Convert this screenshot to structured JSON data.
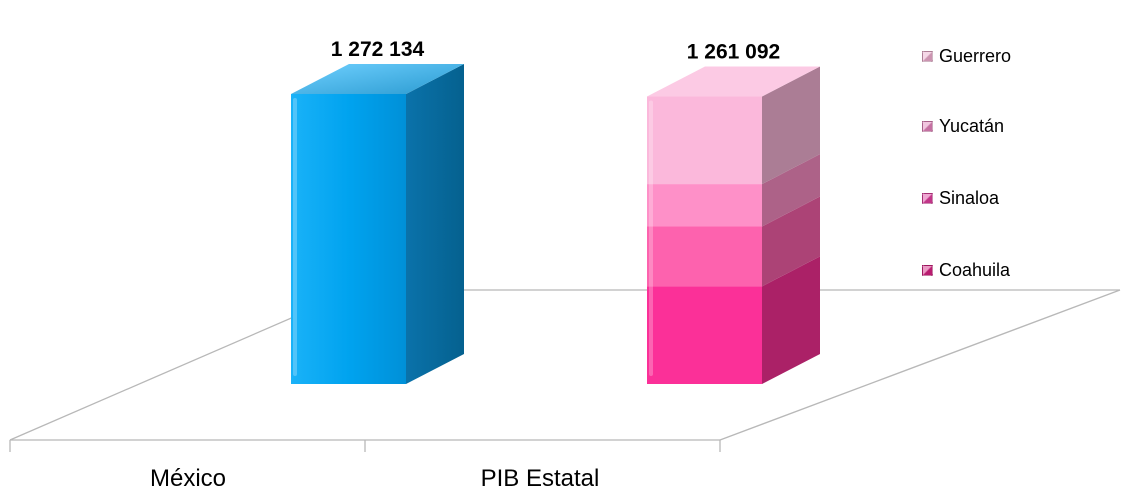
{
  "chart_data": {
    "type": "bar",
    "stacked": true,
    "categories": [
      "México",
      "PIB Estatal"
    ],
    "series": [
      {
        "name": "México",
        "values": [
          1272134,
          null
        ],
        "color": "#00a2ee"
      },
      {
        "name": "Coahuila",
        "values": [
          null,
          428000
        ],
        "color": "#fb3098"
      },
      {
        "name": "Sinaloa",
        "values": [
          null,
          263000
        ],
        "color": "#fd62ae"
      },
      {
        "name": "Yucatán",
        "values": [
          null,
          186000
        ],
        "color": "#fe90c8"
      },
      {
        "name": "Guerrero",
        "values": [
          null,
          384092
        ],
        "color": "#fbb8db"
      }
    ],
    "totals": [
      "1 272 134",
      "1 261 092"
    ],
    "legend": {
      "position": "right",
      "entries": [
        "Guerrero",
        "Yucatán",
        "Sinaloa",
        "Coahuila"
      ]
    },
    "title": "",
    "xlabel": "",
    "ylabel": "",
    "grid": false
  },
  "legend_colors": {
    "Guerrero": "#e8a9c9",
    "Yucatán": "#e080b8",
    "Sinaloa": "#dc3c9b",
    "Coahuila": "#d3207f"
  }
}
